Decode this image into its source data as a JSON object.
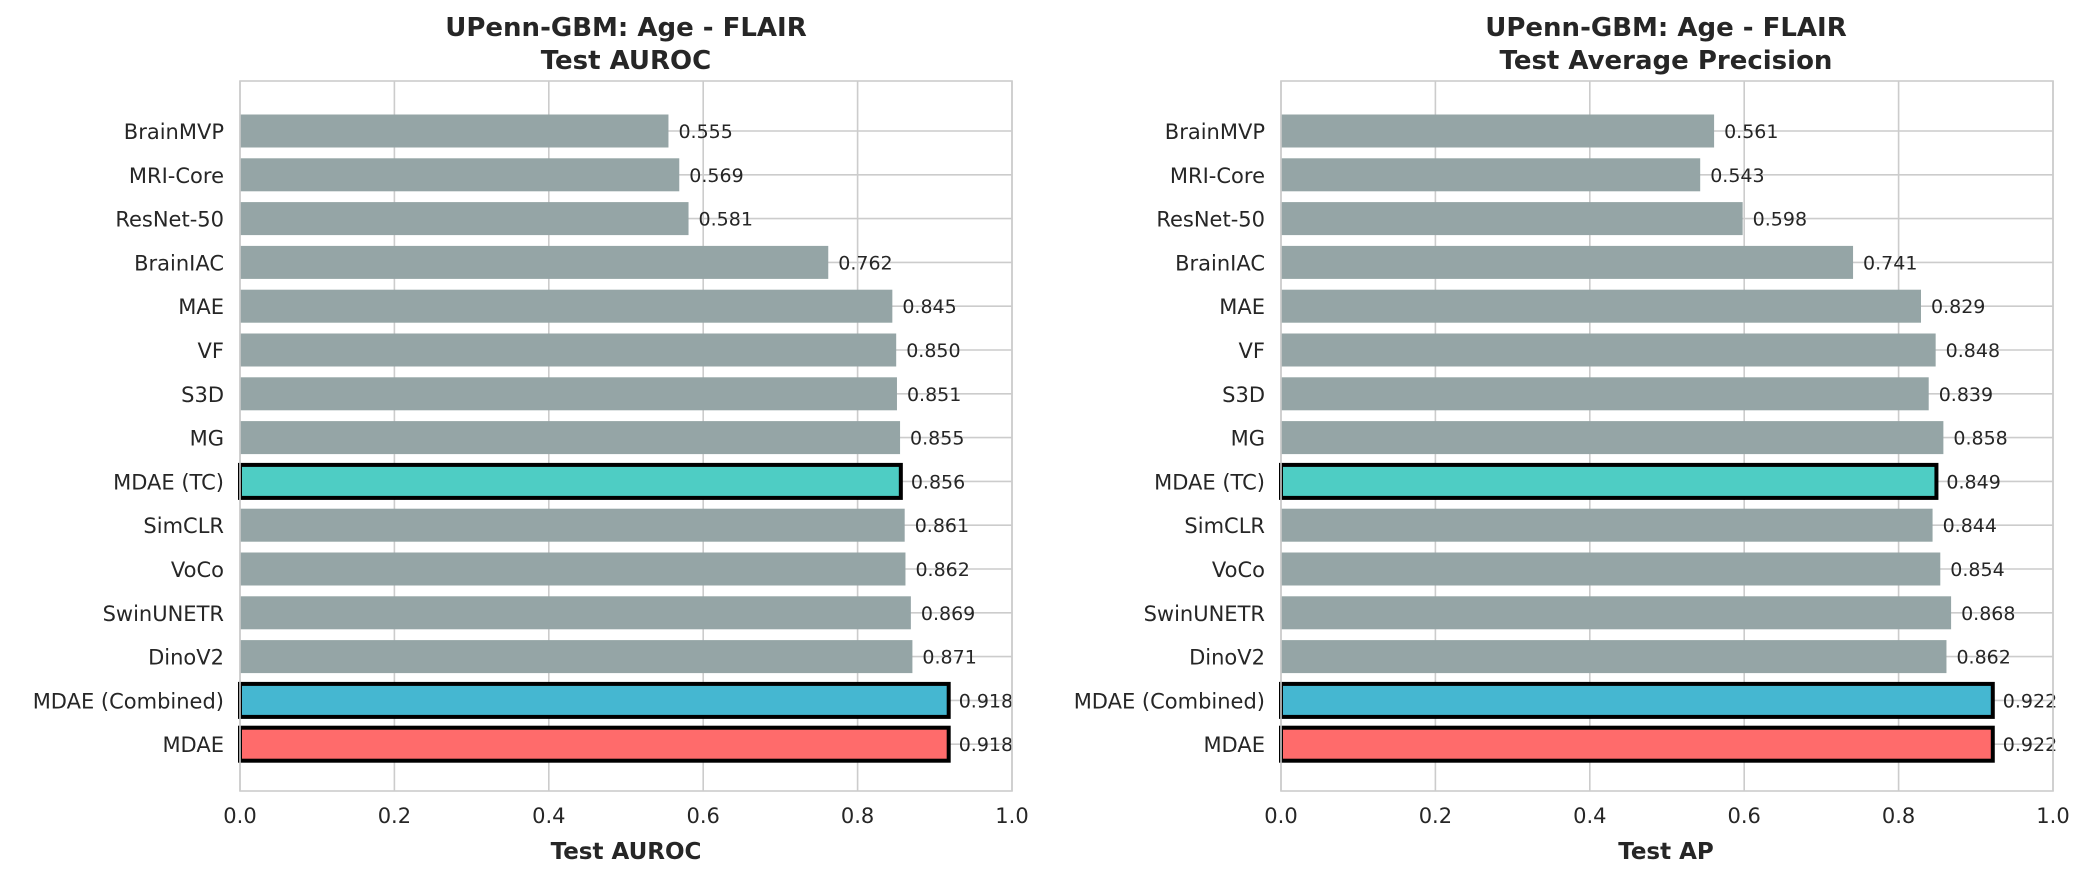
{
  "chart_data": [
    {
      "type": "bar",
      "orientation": "horizontal",
      "title": "UPenn-GBM: Age - FLAIR\nTest AUROC",
      "xlabel": "Test AUROC",
      "ylabel": "",
      "xlim": [
        0.0,
        1.0
      ],
      "xticks": [
        "0.0",
        "0.2",
        "0.4",
        "0.6",
        "0.8",
        "1.0"
      ],
      "grid": true,
      "categories": [
        "BrainMVP",
        "MRI-Core",
        "ResNet-50",
        "BrainIAC",
        "MAE",
        "VF",
        "S3D",
        "MG",
        "MDAE (TC)",
        "SimCLR",
        "VoCo",
        "SwinUNETR",
        "DinoV2",
        "MDAE (Combined)",
        "MDAE"
      ],
      "values": [
        0.555,
        0.569,
        0.581,
        0.762,
        0.845,
        0.85,
        0.851,
        0.855,
        0.856,
        0.861,
        0.862,
        0.869,
        0.871,
        0.918,
        0.918
      ],
      "value_labels": [
        "0.555",
        "0.569",
        "0.581",
        "0.762",
        "0.845",
        "0.850",
        "0.851",
        "0.855",
        "0.856",
        "0.861",
        "0.862",
        "0.869",
        "0.871",
        "0.918",
        "0.918"
      ],
      "colors": [
        "#95a5a6",
        "#95a5a6",
        "#95a5a6",
        "#95a5a6",
        "#95a5a6",
        "#95a5a6",
        "#95a5a6",
        "#95a5a6",
        "#4ecdc4",
        "#95a5a6",
        "#95a5a6",
        "#95a5a6",
        "#95a5a6",
        "#45b7d1",
        "#ff6b6b"
      ],
      "highlighted": [
        false,
        false,
        false,
        false,
        false,
        false,
        false,
        false,
        true,
        false,
        false,
        false,
        false,
        true,
        true
      ]
    },
    {
      "type": "bar",
      "orientation": "horizontal",
      "title": "UPenn-GBM: Age - FLAIR\nTest Average Precision",
      "xlabel": "Test AP",
      "ylabel": "",
      "xlim": [
        0.0,
        1.0
      ],
      "xticks": [
        "0.0",
        "0.2",
        "0.4",
        "0.6",
        "0.8",
        "1.0"
      ],
      "grid": true,
      "categories": [
        "BrainMVP",
        "MRI-Core",
        "ResNet-50",
        "BrainIAC",
        "MAE",
        "VF",
        "S3D",
        "MG",
        "MDAE (TC)",
        "SimCLR",
        "VoCo",
        "SwinUNETR",
        "DinoV2",
        "MDAE (Combined)",
        "MDAE"
      ],
      "values": [
        0.561,
        0.543,
        0.598,
        0.741,
        0.829,
        0.848,
        0.839,
        0.858,
        0.849,
        0.844,
        0.854,
        0.868,
        0.862,
        0.922,
        0.922
      ],
      "value_labels": [
        "0.561",
        "0.543",
        "0.598",
        "0.741",
        "0.829",
        "0.848",
        "0.839",
        "0.858",
        "0.849",
        "0.844",
        "0.854",
        "0.868",
        "0.862",
        "0.922",
        "0.922"
      ],
      "colors": [
        "#95a5a6",
        "#95a5a6",
        "#95a5a6",
        "#95a5a6",
        "#95a5a6",
        "#95a5a6",
        "#95a5a6",
        "#95a5a6",
        "#4ecdc4",
        "#95a5a6",
        "#95a5a6",
        "#95a5a6",
        "#95a5a6",
        "#45b7d1",
        "#ff6b6b"
      ],
      "highlighted": [
        false,
        false,
        false,
        false,
        false,
        false,
        false,
        false,
        true,
        false,
        false,
        false,
        false,
        true,
        true
      ]
    }
  ]
}
